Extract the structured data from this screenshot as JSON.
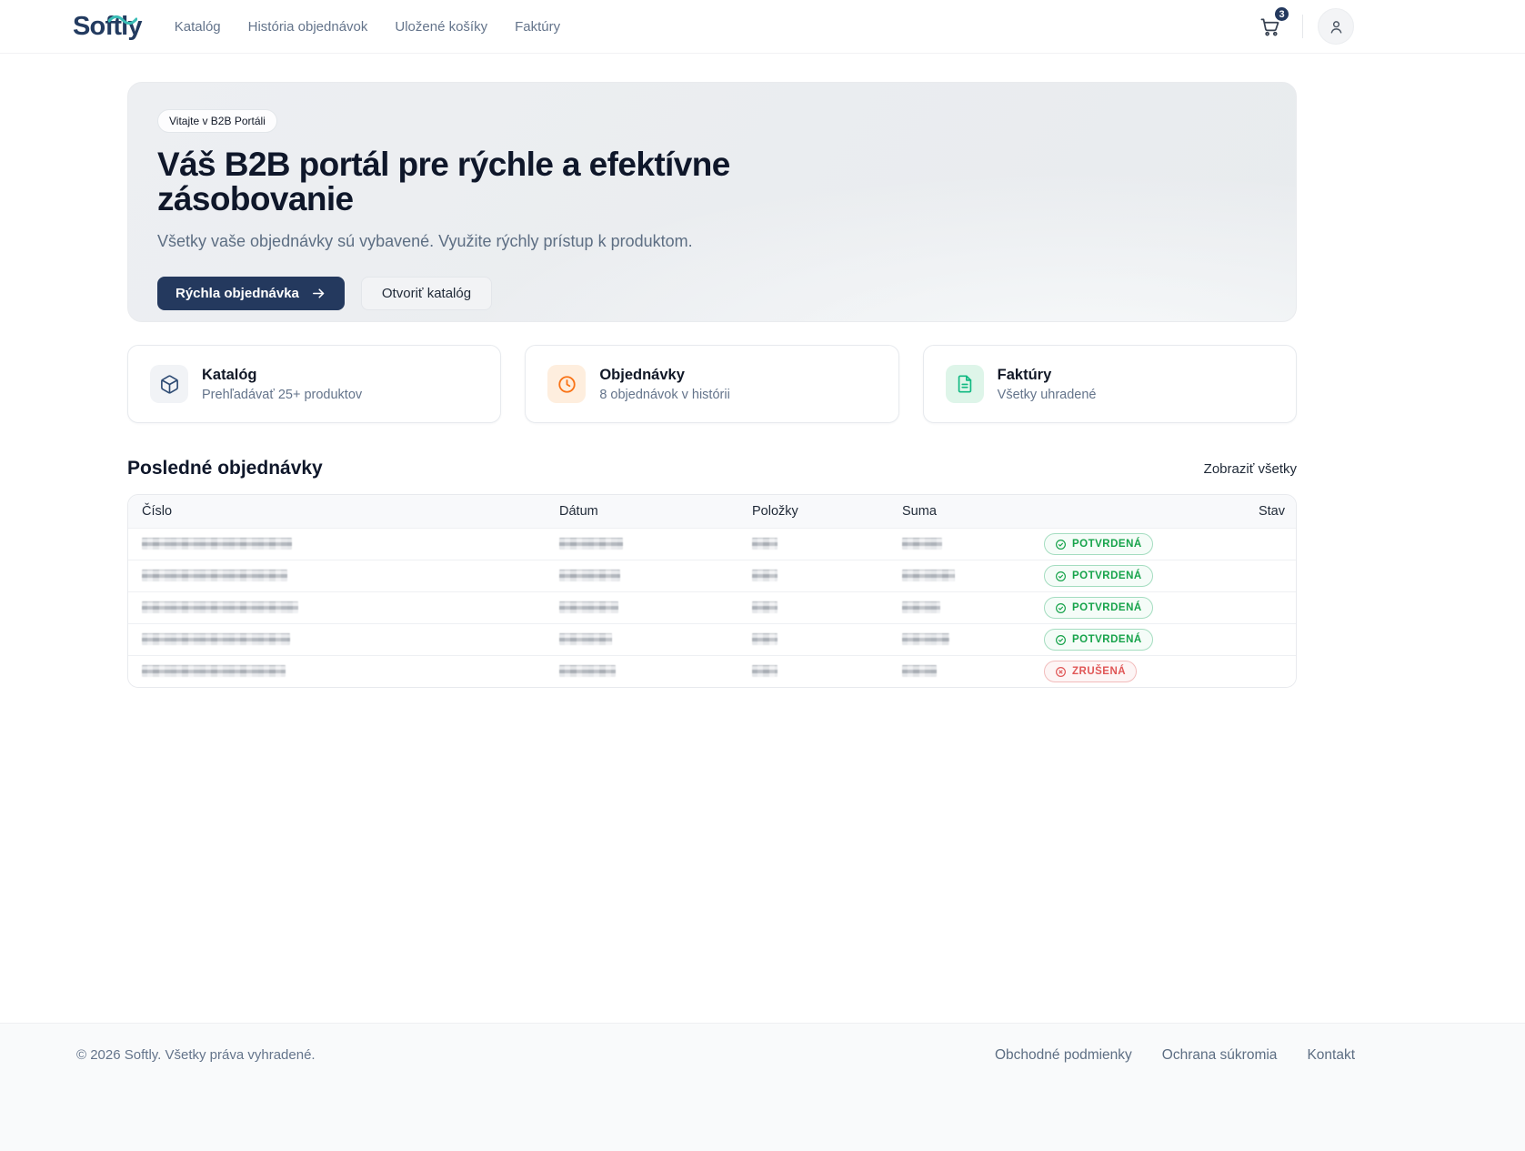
{
  "brand": {
    "name": "Softly"
  },
  "header": {
    "nav": [
      {
        "label": "Katalóg"
      },
      {
        "label": "História objednávok"
      },
      {
        "label": "Uložené košíky"
      },
      {
        "label": "Faktúry"
      }
    ],
    "cart_count": "3"
  },
  "hero": {
    "badge": "Vitajte v B2B Portáli",
    "title": "Váš B2B portál pre rýchle a efektívne zásobovanie",
    "subtitle": "Všetky vaše objednávky sú vybavené. Využite rýchly prístup k produktom.",
    "primary_cta": "Rýchla objednávka",
    "secondary_cta": "Otvoriť katalóg"
  },
  "quick_cards": [
    {
      "title": "Katalóg",
      "subtitle": "Prehľadávať 25+ produktov",
      "icon": "package-icon"
    },
    {
      "title": "Objednávky",
      "subtitle": "8 objednávok v histórii",
      "icon": "clock-icon"
    },
    {
      "title": "Faktúry",
      "subtitle": "Všetky uhradené",
      "icon": "invoice-icon"
    }
  ],
  "orders": {
    "title": "Posledné objednávky",
    "view_all": "Zobraziť všetky",
    "columns": [
      "Číslo",
      "Dátum",
      "Položky",
      "Suma",
      "Stav"
    ],
    "rows": [
      {
        "status": "POTVRDENÁ",
        "status_type": "confirmed",
        "redacted_widths": [
          165,
          70,
          28,
          44
        ]
      },
      {
        "status": "POTVRDENÁ",
        "status_type": "confirmed",
        "redacted_widths": [
          160,
          67,
          28,
          58
        ]
      },
      {
        "status": "POTVRDENÁ",
        "status_type": "confirmed",
        "redacted_widths": [
          172,
          65,
          28,
          42
        ]
      },
      {
        "status": "POTVRDENÁ",
        "status_type": "confirmed",
        "redacted_widths": [
          163,
          58,
          28,
          52
        ]
      },
      {
        "status": "ZRUŠENÁ",
        "status_type": "cancelled",
        "redacted_widths": [
          158,
          62,
          28,
          38
        ]
      }
    ]
  },
  "colors": {
    "brand_navy": "#24395e",
    "brand_teal": "#3abdb6",
    "status_confirmed": "#16a34a",
    "status_cancelled": "#e05656",
    "accent_orange": "#f97316",
    "accent_green": "#10b981"
  },
  "footer": {
    "copyright": "© 2026 Softly. Všetky práva vyhradené.",
    "links": [
      {
        "label": "Obchodné podmienky"
      },
      {
        "label": "Ochrana súkromia"
      },
      {
        "label": "Kontakt"
      }
    ]
  }
}
